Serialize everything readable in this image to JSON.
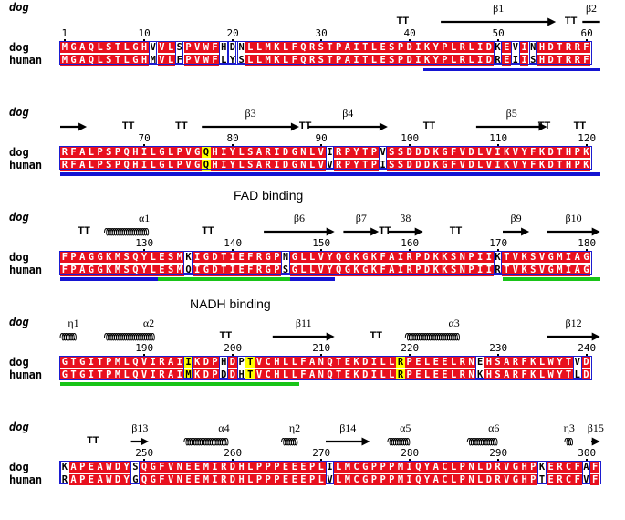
{
  "header_label": "dog",
  "species": [
    "dog",
    "human"
  ],
  "colors": {
    "identical_bg": "#e8101e",
    "identical_fg": "#ffffff",
    "diff_box": "#1c1cd0",
    "highlight_bg": "#ffff00",
    "bar_blue": "#1414d2",
    "bar_green": "#18c418"
  },
  "blocks": [
    {
      "dog": "MGAQLSTLGHVVLSPVWFHDNLLMKLFQRSTPAITLESPDIKYPLRLIDKEVINHDTRRF",
      "human": "MGAQLSTLGHMVLFPVWFLYSLLMKLFQRSTPAITLESPDIKYPLRLIDREIISHDTRRF",
      "numbers": [
        "1",
        "10",
        "20",
        "30",
        "40",
        "50",
        "60"
      ],
      "ss": [
        "TT",
        "β1",
        "TT",
        "β2"
      ],
      "highlights": []
    },
    {
      "dog": "RFALPSPQHILGLPVGQHIYLSARIDGNLVIRPYTPVSSDDDKGFVDLVIKVYFKDTHPK",
      "human": "RFALPSPQHILGLPVGQHIYLSARIDGNLVVRPYTPISSDDDKGFVDLVIKVYFKDTHPK",
      "numbers": [
        "70",
        "80",
        "90",
        "100",
        "110",
        "120"
      ],
      "ss": [
        "TT",
        "TT",
        "β3",
        "TT",
        "β4",
        "TT",
        "β5",
        "TT",
        "TT"
      ],
      "highlights": [
        16
      ]
    },
    {
      "dog": "FPAGGKMSQYLESMKIGDTIEFRGPNGLLVYQGKGKFAIRPDKKSNPIIKTVKSVGMIAG",
      "human": "FPAGGKMSQYLESMQIGDTIEFRGPSGLLVYQGKGKFAIRPDKKSNPIIRTVKSVGMIAG",
      "numbers": [
        "130",
        "140",
        "150",
        "160",
        "170",
        "180"
      ],
      "ss": [
        "TT",
        "α1",
        "TT",
        "β6",
        "β7",
        "TT",
        "β8",
        "TT",
        "β9",
        "β10"
      ],
      "highlights": []
    },
    {
      "dog": "GTGITPMLQVIRAIIKDPHDPTVCHLLFANQTEKDILLRPELEELRNEHSARFKLWYTVD",
      "human": "GTGITPMLQVIRAIMKDPDDHTVCHLLFANQTEKDILLRPELEELRNKHSARFKLWYTLD",
      "numbers": [
        "190",
        "200",
        "210",
        "220",
        "230",
        "240"
      ],
      "ss": [
        "η1",
        "α2",
        "TT",
        "β11",
        "TT",
        "α3",
        "β12"
      ],
      "highlights": [
        14,
        21,
        38
      ]
    },
    {
      "dog": "KAPEAWDYSQGFVNEEMIRDHLPPPEEEPLILMCGPPPMIQYACLPNLDRVGHPKERCFAF",
      "human": "RAPEAWDYGQGFVNEEMIRDHLPPPEEEPLVLMCGPPPMIQYACLPNLDRVGHPTERCFVF",
      "numbers": [
        "250",
        "260",
        "270",
        "280",
        "290",
        "300"
      ],
      "ss": [
        "TT",
        "β13",
        "α4",
        "η2",
        "β14",
        "α5",
        "α6",
        "η3",
        "β15"
      ],
      "highlights": []
    }
  ],
  "annotations": {
    "fad": "FAD binding",
    "nadh": "NADH binding"
  }
}
